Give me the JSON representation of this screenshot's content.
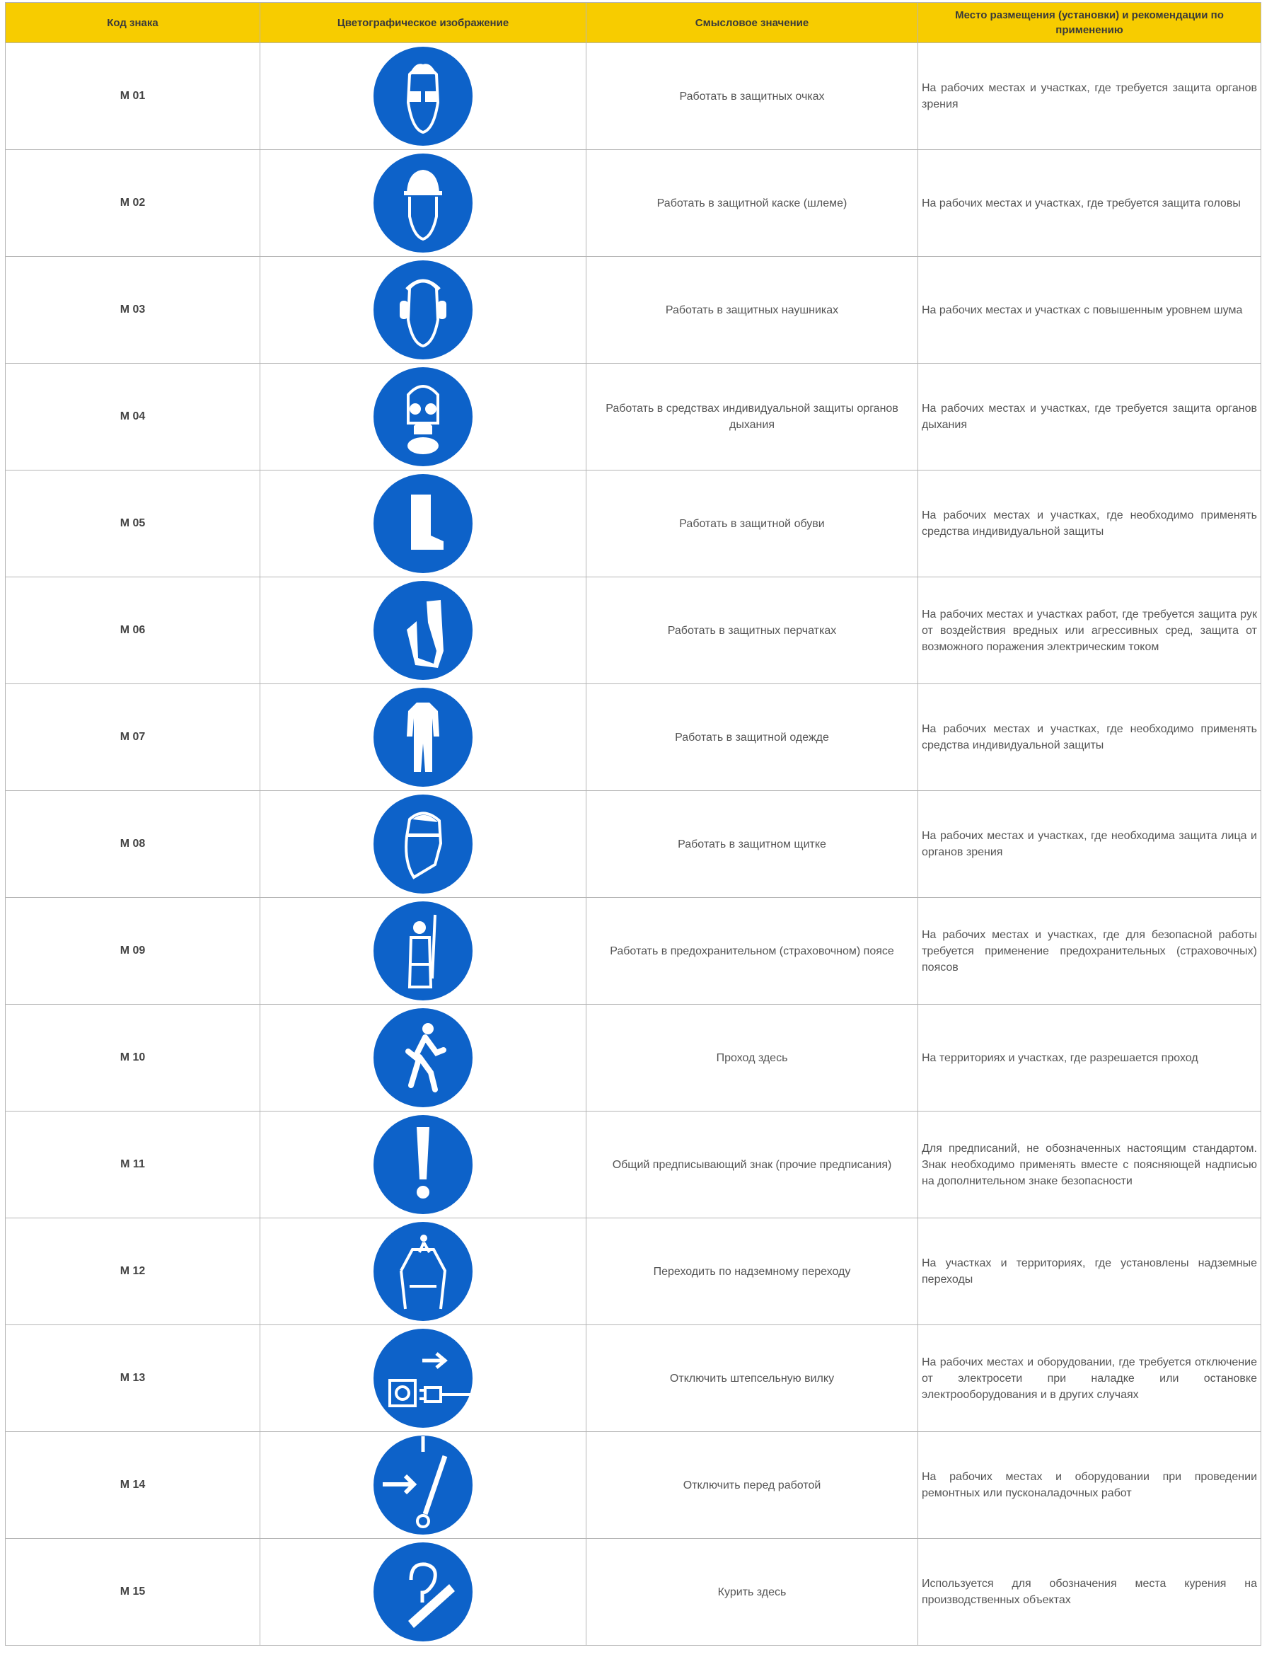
{
  "header": {
    "code": "Код знака",
    "image": "Цветографическое изображение",
    "meaning": "Смысловое значение",
    "place": "Место размещения (установки) и рекомендации по применению"
  },
  "colors": {
    "header_bg": "#f7cc00",
    "sign_blue": "#0d62c9"
  },
  "rows": [
    {
      "code": "M 01",
      "icon": "safety-goggles-icon",
      "meaning": "Работать в защитных очках",
      "place": "На рабочих местах и участках, где требуется защита органов зрения"
    },
    {
      "code": "M 02",
      "icon": "hard-hat-icon",
      "meaning": "Работать в защитной каске (шлеме)",
      "place": "На рабочих местах и участках, где требуется защита головы"
    },
    {
      "code": "M 03",
      "icon": "ear-protection-icon",
      "meaning": "Работать в защитных наушниках",
      "place": "На рабочих местах и участках с повышенным уровнем шума"
    },
    {
      "code": "M 04",
      "icon": "respirator-icon",
      "meaning": "Работать в средствах индивидуальной защиты органов дыхания",
      "place": "На рабочих местах и участках, где требуется защита органов дыхания"
    },
    {
      "code": "M 05",
      "icon": "safety-boot-icon",
      "meaning": "Работать в защитной обуви",
      "place": "На рабочих местах и участках, где необходимо применять средства индивидуальной защиты"
    },
    {
      "code": "M 06",
      "icon": "gloves-icon",
      "meaning": "Работать в защитных перчатках",
      "place": "На рабочих местах и участках работ, где требуется защита рук от воздействия вредных или агрессивных сред, защита от возможного поражения электрическим током"
    },
    {
      "code": "M 07",
      "icon": "coverall-icon",
      "meaning": "Работать в защитной одежде",
      "place": "На рабочих местах и участках, где необходимо применять средства индивидуальной защиты"
    },
    {
      "code": "M 08",
      "icon": "face-shield-icon",
      "meaning": "Работать в защитном щитке",
      "place": "На рабочих местах и участках, где необходима защита лица и органов зрения"
    },
    {
      "code": "M 09",
      "icon": "safety-harness-icon",
      "meaning": "Работать в предохранительном (страховочном) поясе",
      "place": "На рабочих местах и участках, где для безопасной работы требуется применение предохранительных (страховочных) поясов"
    },
    {
      "code": "M 10",
      "icon": "pedestrian-icon",
      "meaning": "Проход здесь",
      "place": "На территориях и участках, где разрешается проход"
    },
    {
      "code": "M 11",
      "icon": "exclamation-icon",
      "meaning": "Общий предписывающий знак (прочие предписания)",
      "place": "Для предписаний, не обозначенных настоящим стандартом. Знак необходимо применять вместе с поясняющей надписью на дополнительном знаке безопасности"
    },
    {
      "code": "M 12",
      "icon": "overpass-icon",
      "meaning": "Переходить по надземному переходу",
      "place": "На участках и территориях, где установлены надземные переходы"
    },
    {
      "code": "M 13",
      "icon": "unplug-icon",
      "meaning": "Отключить штепсельную вилку",
      "place": "На рабочих местах и оборудовании, где требуется отключение от электросети при наладке или остановке электрооборудования и в других случаях"
    },
    {
      "code": "M 14",
      "icon": "disconnect-switch-icon",
      "meaning": "Отключить перед работой",
      "place": "На рабочих местах и оборудовании при проведении ремонтных или пусконаладочных работ"
    },
    {
      "code": "M 15",
      "icon": "smoking-area-icon",
      "meaning": "Курить здесь",
      "place": "Используется для обозначения места курения на производственных объектах"
    }
  ]
}
